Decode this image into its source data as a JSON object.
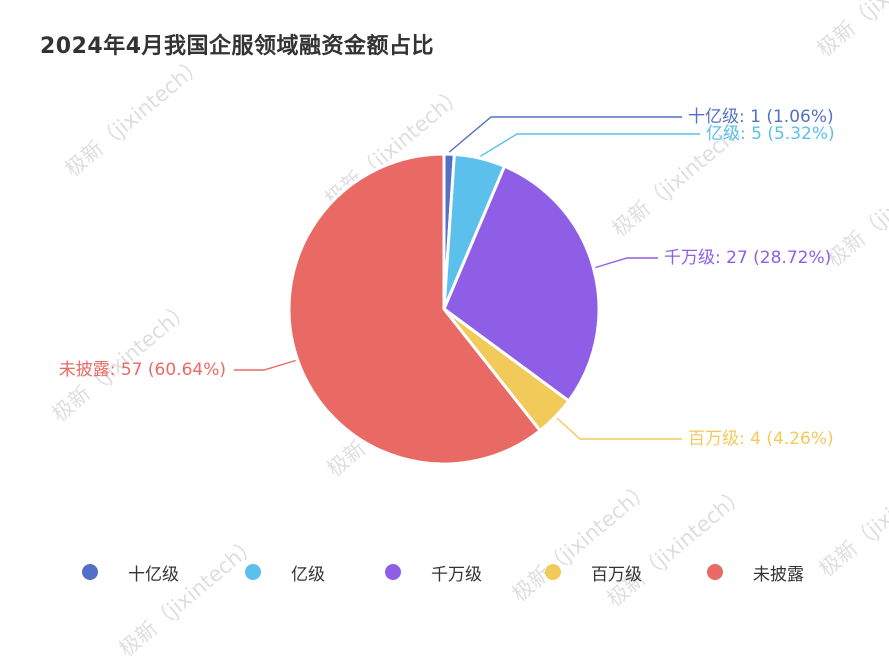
{
  "title": "2024年4月我国企服领域融资金额占比",
  "watermark": "极新（jixintech）",
  "chart_data": {
    "type": "pie",
    "title": "2024年4月我国企服领域融资金额占比",
    "categories": [
      "十亿级",
      "亿级",
      "千万级",
      "百万级",
      "未披露"
    ],
    "values": [
      1,
      5,
      27,
      4,
      57
    ],
    "percent_labels": [
      "1.06%",
      "5.32%",
      "28.72%",
      "4.26%",
      "60.64%"
    ],
    "data_labels": [
      "十亿级: 1 (1.06%)",
      "亿级: 5 (5.32%)",
      "千万级: 27 (28.72%)",
      "百万级: 4 (4.26%)",
      "未披露: 57 (60.64%)"
    ],
    "colors": [
      "#5470c6",
      "#5bc0eb",
      "#8e5fe6",
      "#f2ca5a",
      "#e96a64"
    ],
    "legend_position": "bottom"
  }
}
